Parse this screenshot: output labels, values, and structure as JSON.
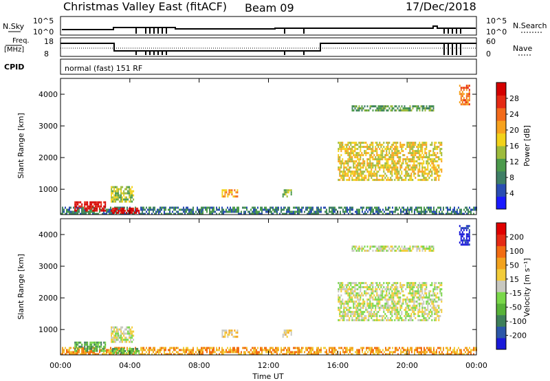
{
  "header": {
    "station": "Christmas Valley East (fitACF)",
    "beam": "Beam 09",
    "date": "17/Dec/2018",
    "nsky_label": "N.Sky",
    "nsearch_label": "N.Search",
    "nsky_ticks": [
      "10^5",
      "10^0"
    ],
    "nsearch_ticks": [
      "10^5",
      "10^0"
    ],
    "freq_label_1": "Freq.",
    "freq_label_2": "[MHz]",
    "freq_ticks": [
      "18",
      "8"
    ],
    "nave_label": "Nave",
    "nave_ticks": [
      "60",
      "0"
    ],
    "cpid_label": "CPID",
    "cpid_value": "normal (fast) 151 RF"
  },
  "chart_data": [
    {
      "type": "heatmap",
      "name": "power",
      "ylabel": "Slant Range [km]",
      "xlabel": "",
      "x_ticks": [
        "00:00",
        "04:00",
        "08:00",
        "12:00",
        "16:00",
        "20:00",
        "00:00"
      ],
      "y_ticks": [
        1000,
        2000,
        3000,
        4000
      ],
      "xlim": [
        0,
        24
      ],
      "ylim": [
        200,
        4500
      ],
      "colorbar": {
        "label": "Power [dB]",
        "ticks": [
          "4",
          "8",
          "12",
          "16",
          "20",
          "24",
          "28"
        ],
        "colors": [
          "#1a1aff",
          "#2a4db3",
          "#3f7f66",
          "#4c9a4c",
          "#9dbb3c",
          "#f2d21a",
          "#f7a21e",
          "#f36b1b",
          "#e52a14",
          "#d40000"
        ]
      },
      "regions": [
        {
          "t0": 0.0,
          "t1": 24.0,
          "r0": 250,
          "r1": 450,
          "level": 2
        },
        {
          "t0": 0.8,
          "t1": 2.6,
          "r0": 300,
          "r1": 620,
          "level": 9
        },
        {
          "t0": 2.9,
          "t1": 4.5,
          "r0": 250,
          "r1": 420,
          "level": 9
        },
        {
          "t0": 2.9,
          "t1": 4.2,
          "r0": 600,
          "r1": 1100,
          "level": 4
        },
        {
          "t0": 9.3,
          "t1": 10.2,
          "r0": 750,
          "r1": 1000,
          "level": 6
        },
        {
          "t0": 12.8,
          "t1": 13.3,
          "r0": 800,
          "r1": 1000,
          "level": 4
        },
        {
          "t0": 16.0,
          "t1": 22.0,
          "r0": 1300,
          "r1": 2500,
          "level": 5
        },
        {
          "t0": 16.8,
          "t1": 21.5,
          "r0": 3500,
          "r1": 3650,
          "level": 3
        },
        {
          "t0": 23.0,
          "t1": 23.6,
          "r0": 3700,
          "r1": 4300,
          "level": 7
        }
      ]
    },
    {
      "type": "heatmap",
      "name": "velocity",
      "ylabel": "Slant Range [km]",
      "xlabel": "Time UT",
      "x_ticks": [
        "00:00",
        "04:00",
        "08:00",
        "12:00",
        "16:00",
        "20:00",
        "00:00"
      ],
      "y_ticks": [
        1000,
        2000,
        3000,
        4000
      ],
      "xlim": [
        0,
        24
      ],
      "ylim": [
        200,
        4500
      ],
      "colorbar": {
        "label": "Velocity [m s⁻¹]",
        "ticks": [
          "200",
          "100",
          "50",
          "15",
          "-15",
          "-50",
          "-100",
          "-200"
        ],
        "colors": [
          "#1a1ad9",
          "#2c57a8",
          "#3e7f5a",
          "#58b339",
          "#7ad84a",
          "#c8c8c0",
          "#f2cc3a",
          "#f2a21e",
          "#f26c12",
          "#e52a14",
          "#e00000"
        ]
      },
      "regions": [
        {
          "t0": 0.0,
          "t1": 24.0,
          "r0": 250,
          "r1": 450,
          "level": 7
        },
        {
          "t0": 0.8,
          "t1": 2.6,
          "r0": 300,
          "r1": 620,
          "level": 3
        },
        {
          "t0": 2.9,
          "t1": 4.5,
          "r0": 250,
          "r1": 420,
          "level": 3
        },
        {
          "t0": 2.9,
          "t1": 4.2,
          "r0": 600,
          "r1": 1100,
          "level": 5
        },
        {
          "t0": 9.3,
          "t1": 10.2,
          "r0": 750,
          "r1": 1000,
          "level": 6
        },
        {
          "t0": 12.8,
          "t1": 13.3,
          "r0": 800,
          "r1": 1000,
          "level": 6
        },
        {
          "t0": 16.0,
          "t1": 22.0,
          "r0": 1300,
          "r1": 2500,
          "level": 5
        },
        {
          "t0": 16.8,
          "t1": 21.5,
          "r0": 3500,
          "r1": 3650,
          "level": 5
        },
        {
          "t0": 23.0,
          "t1": 23.6,
          "r0": 3700,
          "r1": 4300,
          "level": 0
        }
      ]
    }
  ]
}
